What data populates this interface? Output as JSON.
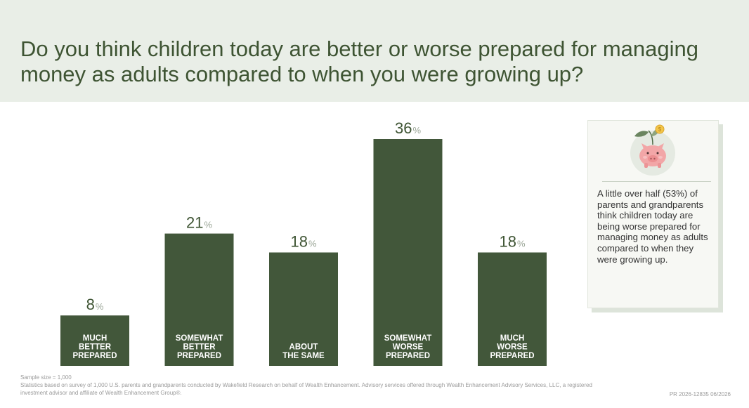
{
  "title": "Do you think children today are better or worse prepared for managing money as adults compared to when you were growing up?",
  "chart_data": {
    "type": "bar",
    "categories": [
      [
        "MUCH",
        "BETTER",
        "PREPARED"
      ],
      [
        "SOMEWHAT",
        "BETTER",
        "PREPARED"
      ],
      [
        "ABOUT",
        "THE SAME"
      ],
      [
        "SOMEWHAT",
        "WORSE",
        "PREPARED"
      ],
      [
        "MUCH",
        "WORSE",
        "PREPARED"
      ]
    ],
    "values": [
      8,
      21,
      18,
      36,
      18
    ],
    "unit": "%",
    "ylim": [
      0,
      36
    ],
    "bar_color": "#42573a",
    "grid": false
  },
  "callout": {
    "icon": "piggy-bank-icon",
    "text": "A little over half (53%) of parents and grandparents think children today are being worse prepared for managing money as adults compared to when they were growing up."
  },
  "footer": {
    "sample_size": "Sample size = 1,000",
    "disclaimer": "Statistics based on survey of 1,000 U.S. parents and grandparents conducted by Wakefield Research on behalf of Wealth Enhancement. Advisory services offered through Wealth Enhancement Advisory Services, LLC, a registered investment advisor and affiliate of Wealth Enhancement Group®.",
    "code": "PR 2026-12835 06/2026"
  }
}
